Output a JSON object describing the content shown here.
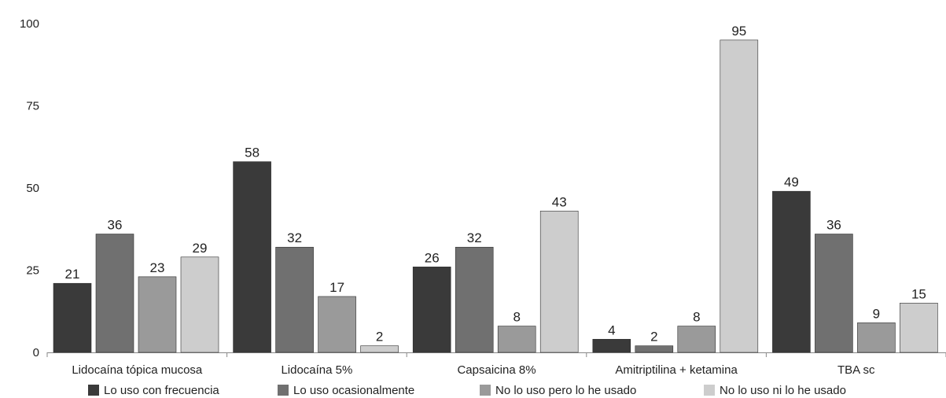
{
  "chart_data": {
    "type": "bar",
    "categories": [
      "Lidocaína tópica mucosa",
      "Lidocaína 5%",
      "Capsaicina 8%",
      "Amitriptilina + ketamina",
      "TBA sc"
    ],
    "series": [
      {
        "name": "Lo uso con frecuencia",
        "color": "#3a3a3a",
        "values": [
          21,
          58,
          26,
          4,
          49
        ]
      },
      {
        "name": "Lo uso ocasionalmente",
        "color": "#707070",
        "values": [
          36,
          32,
          32,
          2,
          36
        ]
      },
      {
        "name": "No lo uso pero lo he usado",
        "color": "#9a9a9a",
        "values": [
          23,
          17,
          8,
          8,
          9
        ]
      },
      {
        "name": "No lo uso ni lo he usado",
        "color": "#cdcdcd",
        "values": [
          29,
          2,
          43,
          95,
          15
        ]
      }
    ],
    "yticks": [
      "0",
      "25",
      "50",
      "75",
      "100"
    ],
    "ylim": [
      0,
      100
    ],
    "grid": false,
    "legend": "bottom",
    "data_labels": true
  }
}
